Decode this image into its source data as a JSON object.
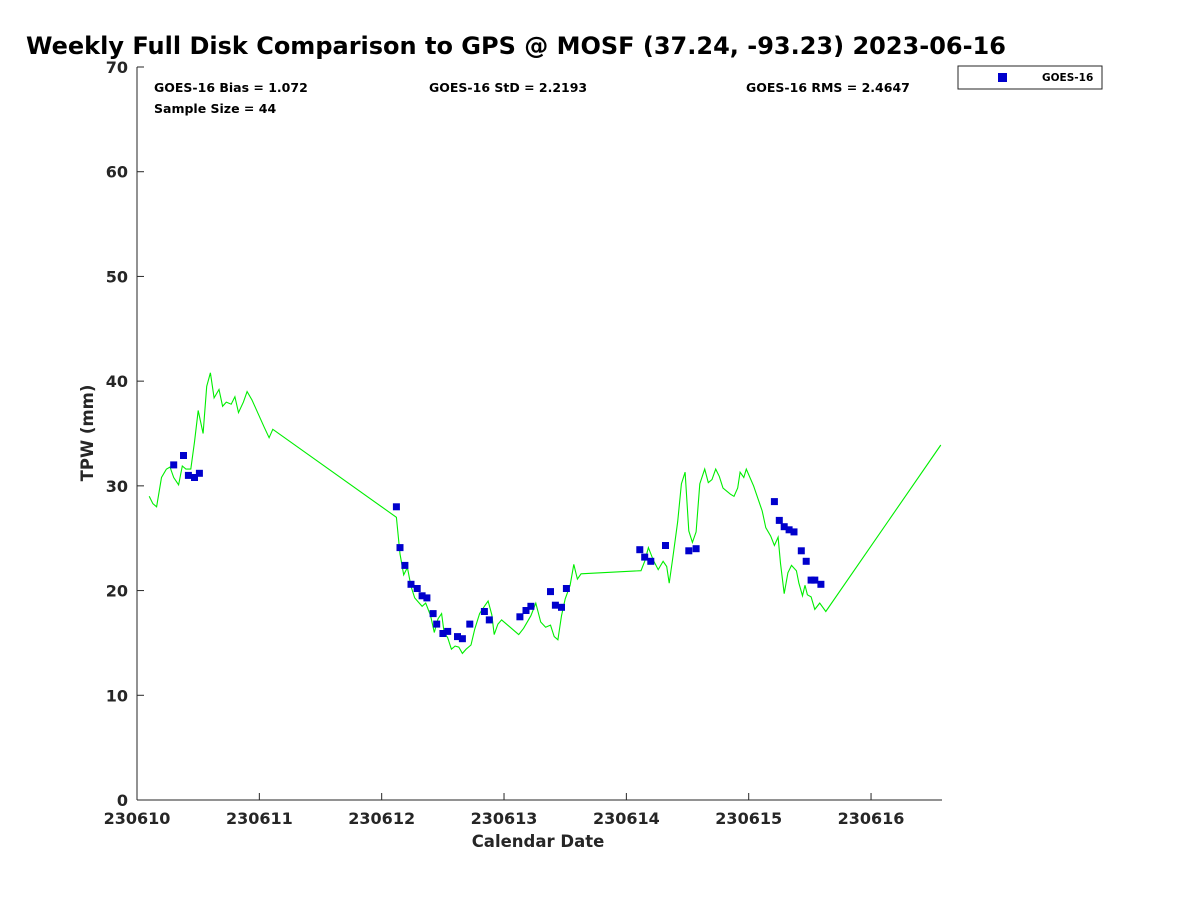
{
  "chart_data": {
    "type": "scatter",
    "title": "Weekly Full Disk Comparison to GPS @ MOSF (37.24, -93.23) 2023-06-16",
    "xlabel": "Calendar Date",
    "ylabel": "TPW (mm)",
    "xlim": [
      0,
      6.58
    ],
    "ylim": [
      0,
      70
    ],
    "x_tick_values": [
      0,
      1,
      2,
      3,
      4,
      5,
      6
    ],
    "x_tick_labels": [
      "230610",
      "230611",
      "230612",
      "230613",
      "230614",
      "230615",
      "230616"
    ],
    "y_tick_values": [
      0,
      10,
      20,
      30,
      40,
      50,
      60,
      70
    ],
    "y_tick_labels": [
      "0",
      "10",
      "20",
      "30",
      "40",
      "50",
      "60",
      "70"
    ],
    "grid": false,
    "legend_position": "top-right",
    "stats": {
      "bias": "GOES-16 Bias = 1.072",
      "std": "GOES-16 StD = 2.2193",
      "rms": "GOES-16 RMS = 2.4647",
      "sample": "Sample Size = 44"
    },
    "series": [
      {
        "name": "GOES-16",
        "kind": "scatter",
        "color": "#0000cc",
        "marker": "square",
        "points": [
          [
            0.3,
            32.0
          ],
          [
            0.38,
            32.9
          ],
          [
            0.42,
            31.0
          ],
          [
            0.47,
            30.8
          ],
          [
            0.51,
            31.2
          ],
          [
            2.12,
            28.0
          ],
          [
            2.15,
            24.1
          ],
          [
            2.19,
            22.4
          ],
          [
            2.24,
            20.6
          ],
          [
            2.29,
            20.2
          ],
          [
            2.33,
            19.5
          ],
          [
            2.37,
            19.3
          ],
          [
            2.42,
            17.8
          ],
          [
            2.45,
            16.8
          ],
          [
            2.5,
            15.9
          ],
          [
            2.54,
            16.1
          ],
          [
            2.62,
            15.6
          ],
          [
            2.66,
            15.4
          ],
          [
            2.72,
            16.8
          ],
          [
            2.84,
            18.0
          ],
          [
            2.88,
            17.2
          ],
          [
            3.13,
            17.5
          ],
          [
            3.18,
            18.1
          ],
          [
            3.22,
            18.5
          ],
          [
            3.38,
            19.9
          ],
          [
            3.42,
            18.6
          ],
          [
            3.47,
            18.4
          ],
          [
            3.51,
            20.2
          ],
          [
            4.11,
            23.9
          ],
          [
            4.15,
            23.2
          ],
          [
            4.2,
            22.8
          ],
          [
            4.32,
            24.3
          ],
          [
            4.51,
            23.8
          ],
          [
            4.57,
            24.0
          ],
          [
            5.21,
            28.5
          ],
          [
            5.25,
            26.7
          ],
          [
            5.29,
            26.1
          ],
          [
            5.33,
            25.8
          ],
          [
            5.37,
            25.6
          ],
          [
            5.43,
            23.8
          ],
          [
            5.47,
            22.8
          ],
          [
            5.51,
            21.0
          ],
          [
            5.54,
            21.0
          ],
          [
            5.59,
            20.6
          ]
        ]
      },
      {
        "name": "",
        "kind": "line",
        "color": "#00ee00",
        "points": [
          [
            0.1,
            29.0
          ],
          [
            0.13,
            28.3
          ],
          [
            0.16,
            28.0
          ],
          [
            0.2,
            30.8
          ],
          [
            0.24,
            31.6
          ],
          [
            0.27,
            31.8
          ],
          [
            0.3,
            30.8
          ],
          [
            0.34,
            30.1
          ],
          [
            0.37,
            31.9
          ],
          [
            0.4,
            31.6
          ],
          [
            0.44,
            31.6
          ],
          [
            0.47,
            34.2
          ],
          [
            0.5,
            37.2
          ],
          [
            0.54,
            35.0
          ],
          [
            0.57,
            39.5
          ],
          [
            0.6,
            40.8
          ],
          [
            0.63,
            38.4
          ],
          [
            0.67,
            39.2
          ],
          [
            0.7,
            37.6
          ],
          [
            0.73,
            38.0
          ],
          [
            0.77,
            37.8
          ],
          [
            0.8,
            38.5
          ],
          [
            0.83,
            37.0
          ],
          [
            0.87,
            38.0
          ],
          [
            0.9,
            39.0
          ],
          [
            0.94,
            38.2
          ],
          [
            1.04,
            35.6
          ],
          [
            1.08,
            34.6
          ],
          [
            1.11,
            35.4
          ],
          [
            2.12,
            27.0
          ],
          [
            2.15,
            23.5
          ],
          [
            2.18,
            21.5
          ],
          [
            2.21,
            22.2
          ],
          [
            2.24,
            20.4
          ],
          [
            2.27,
            19.3
          ],
          [
            2.3,
            18.9
          ],
          [
            2.33,
            18.5
          ],
          [
            2.36,
            18.8
          ],
          [
            2.4,
            17.6
          ],
          [
            2.43,
            16.0
          ],
          [
            2.46,
            17.3
          ],
          [
            2.49,
            17.8
          ],
          [
            2.51,
            16.0
          ],
          [
            2.54,
            15.5
          ],
          [
            2.57,
            14.4
          ],
          [
            2.6,
            14.7
          ],
          [
            2.63,
            14.6
          ],
          [
            2.66,
            14.0
          ],
          [
            2.69,
            14.4
          ],
          [
            2.73,
            14.8
          ],
          [
            2.76,
            16.3
          ],
          [
            2.8,
            17.8
          ],
          [
            2.84,
            18.5
          ],
          [
            2.87,
            19.0
          ],
          [
            2.9,
            17.7
          ],
          [
            2.92,
            15.8
          ],
          [
            2.95,
            16.8
          ],
          [
            2.98,
            17.2
          ],
          [
            3.12,
            15.8
          ],
          [
            3.16,
            16.4
          ],
          [
            3.22,
            17.6
          ],
          [
            3.26,
            18.8
          ],
          [
            3.3,
            17.0
          ],
          [
            3.34,
            16.5
          ],
          [
            3.38,
            16.7
          ],
          [
            3.41,
            15.6
          ],
          [
            3.44,
            15.3
          ],
          [
            3.47,
            17.6
          ],
          [
            3.5,
            19.2
          ],
          [
            3.54,
            20.5
          ],
          [
            3.57,
            22.5
          ],
          [
            3.6,
            21.1
          ],
          [
            3.63,
            21.6
          ],
          [
            4.12,
            21.9
          ],
          [
            4.15,
            22.8
          ],
          [
            4.18,
            24.1
          ],
          [
            4.22,
            22.9
          ],
          [
            4.26,
            22.0
          ],
          [
            4.3,
            22.8
          ],
          [
            4.33,
            22.3
          ],
          [
            4.35,
            20.7
          ],
          [
            4.38,
            23.2
          ],
          [
            4.42,
            26.6
          ],
          [
            4.45,
            30.2
          ],
          [
            4.48,
            31.3
          ],
          [
            4.51,
            25.7
          ],
          [
            4.54,
            24.6
          ],
          [
            4.57,
            25.6
          ],
          [
            4.6,
            30.2
          ],
          [
            4.64,
            31.6
          ],
          [
            4.67,
            30.3
          ],
          [
            4.7,
            30.6
          ],
          [
            4.73,
            31.6
          ],
          [
            4.76,
            30.9
          ],
          [
            4.79,
            29.8
          ],
          [
            4.85,
            29.2
          ],
          [
            4.88,
            29.0
          ],
          [
            4.91,
            29.8
          ],
          [
            4.93,
            31.3
          ],
          [
            4.96,
            30.8
          ],
          [
            4.98,
            31.6
          ],
          [
            5.04,
            30.0
          ],
          [
            5.11,
            27.6
          ],
          [
            5.14,
            26.0
          ],
          [
            5.18,
            25.2
          ],
          [
            5.21,
            24.3
          ],
          [
            5.24,
            25.1
          ],
          [
            5.26,
            22.6
          ],
          [
            5.29,
            19.7
          ],
          [
            5.32,
            21.7
          ],
          [
            5.35,
            22.4
          ],
          [
            5.39,
            21.9
          ],
          [
            5.41,
            20.7
          ],
          [
            5.44,
            19.5
          ],
          [
            5.46,
            20.5
          ],
          [
            5.48,
            19.6
          ],
          [
            5.51,
            19.4
          ],
          [
            5.54,
            18.2
          ],
          [
            5.58,
            18.8
          ],
          [
            5.63,
            18.0
          ],
          [
            6.57,
            33.9
          ]
        ]
      }
    ]
  }
}
